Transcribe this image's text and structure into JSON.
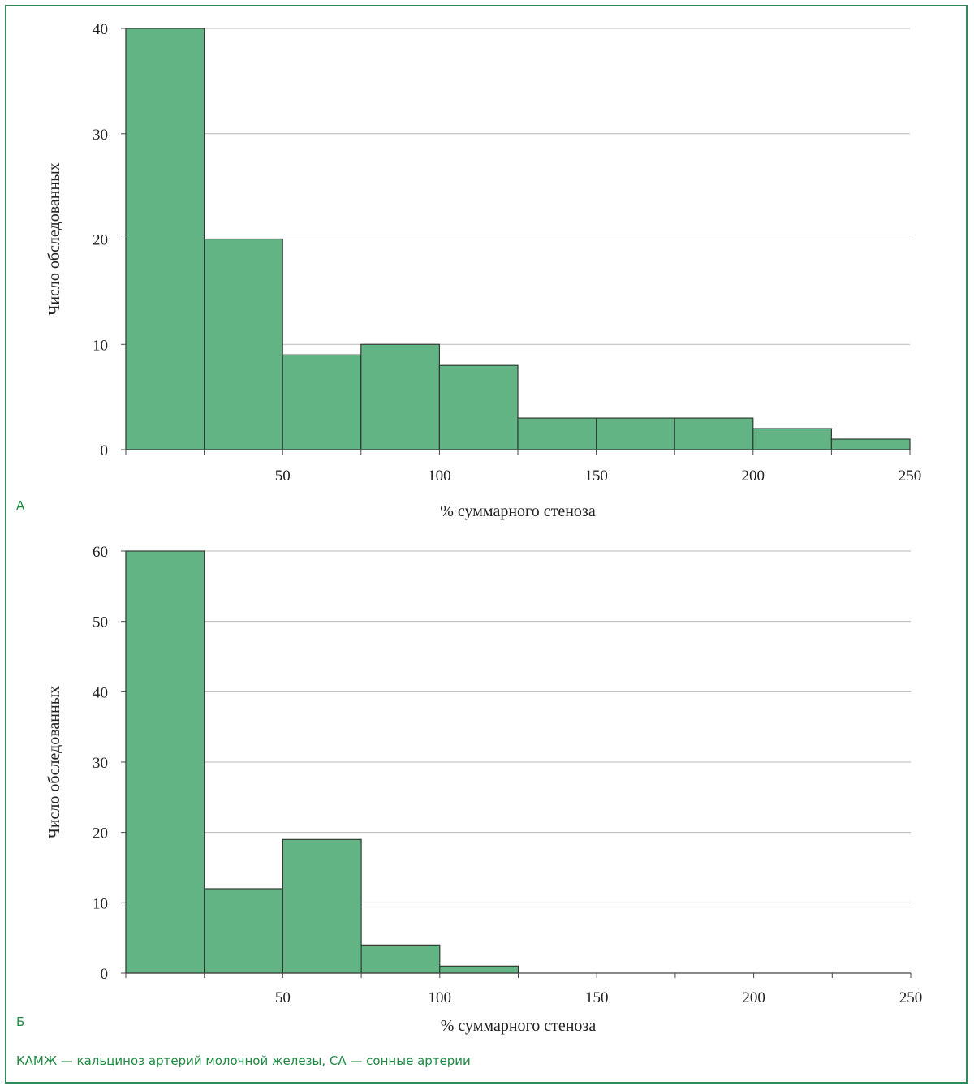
{
  "colors": {
    "bar_fill": "#63b485",
    "bar_stroke": "#2f3b33",
    "grid": "#b8b8b8",
    "axis": "#444444",
    "frame": "#2e8b57",
    "label_green": "#1f8a43"
  },
  "footnote": "КАМЖ — кальциноз артерий молочной железы, СА — сонные артерии",
  "chart_data": [
    {
      "type": "bar",
      "panel_label": "А",
      "xlabel": "% суммарного стеноза",
      "ylabel": "Число обследованных",
      "bins": [
        [
          0,
          25
        ],
        [
          25,
          50
        ],
        [
          50,
          75
        ],
        [
          75,
          100
        ],
        [
          100,
          125
        ],
        [
          125,
          150
        ],
        [
          150,
          175
        ],
        [
          175,
          200
        ],
        [
          200,
          225
        ],
        [
          225,
          250
        ]
      ],
      "values": [
        40,
        20,
        9,
        10,
        8,
        3,
        3,
        3,
        2,
        1
      ],
      "xlim": [
        0,
        250
      ],
      "ylim": [
        0,
        40
      ],
      "xticks": [
        50,
        100,
        150,
        200,
        250
      ],
      "xtick_labels": [
        "50",
        "100",
        "150",
        "200",
        "250"
      ],
      "yticks": [
        0,
        10,
        20,
        30,
        40
      ],
      "ytick_labels": [
        "0",
        "10",
        "20",
        "30",
        "40"
      ],
      "grid": true
    },
    {
      "type": "bar",
      "panel_label": "Б",
      "xlabel": "% суммарного стеноза",
      "ylabel": "Число обследованных",
      "bins": [
        [
          0,
          25
        ],
        [
          25,
          50
        ],
        [
          50,
          75
        ],
        [
          75,
          100
        ],
        [
          100,
          125
        ]
      ],
      "values": [
        60,
        12,
        19,
        4,
        1
      ],
      "xlim": [
        0,
        250
      ],
      "ylim": [
        0,
        60
      ],
      "xticks": [
        50,
        100,
        150,
        200,
        250
      ],
      "xtick_labels": [
        "50",
        "100",
        "150",
        "200",
        "250"
      ],
      "yticks": [
        0,
        10,
        20,
        30,
        40,
        50,
        60
      ],
      "ytick_labels": [
        "0",
        "10",
        "20",
        "30",
        "40",
        "50",
        "60"
      ],
      "grid": true
    }
  ]
}
